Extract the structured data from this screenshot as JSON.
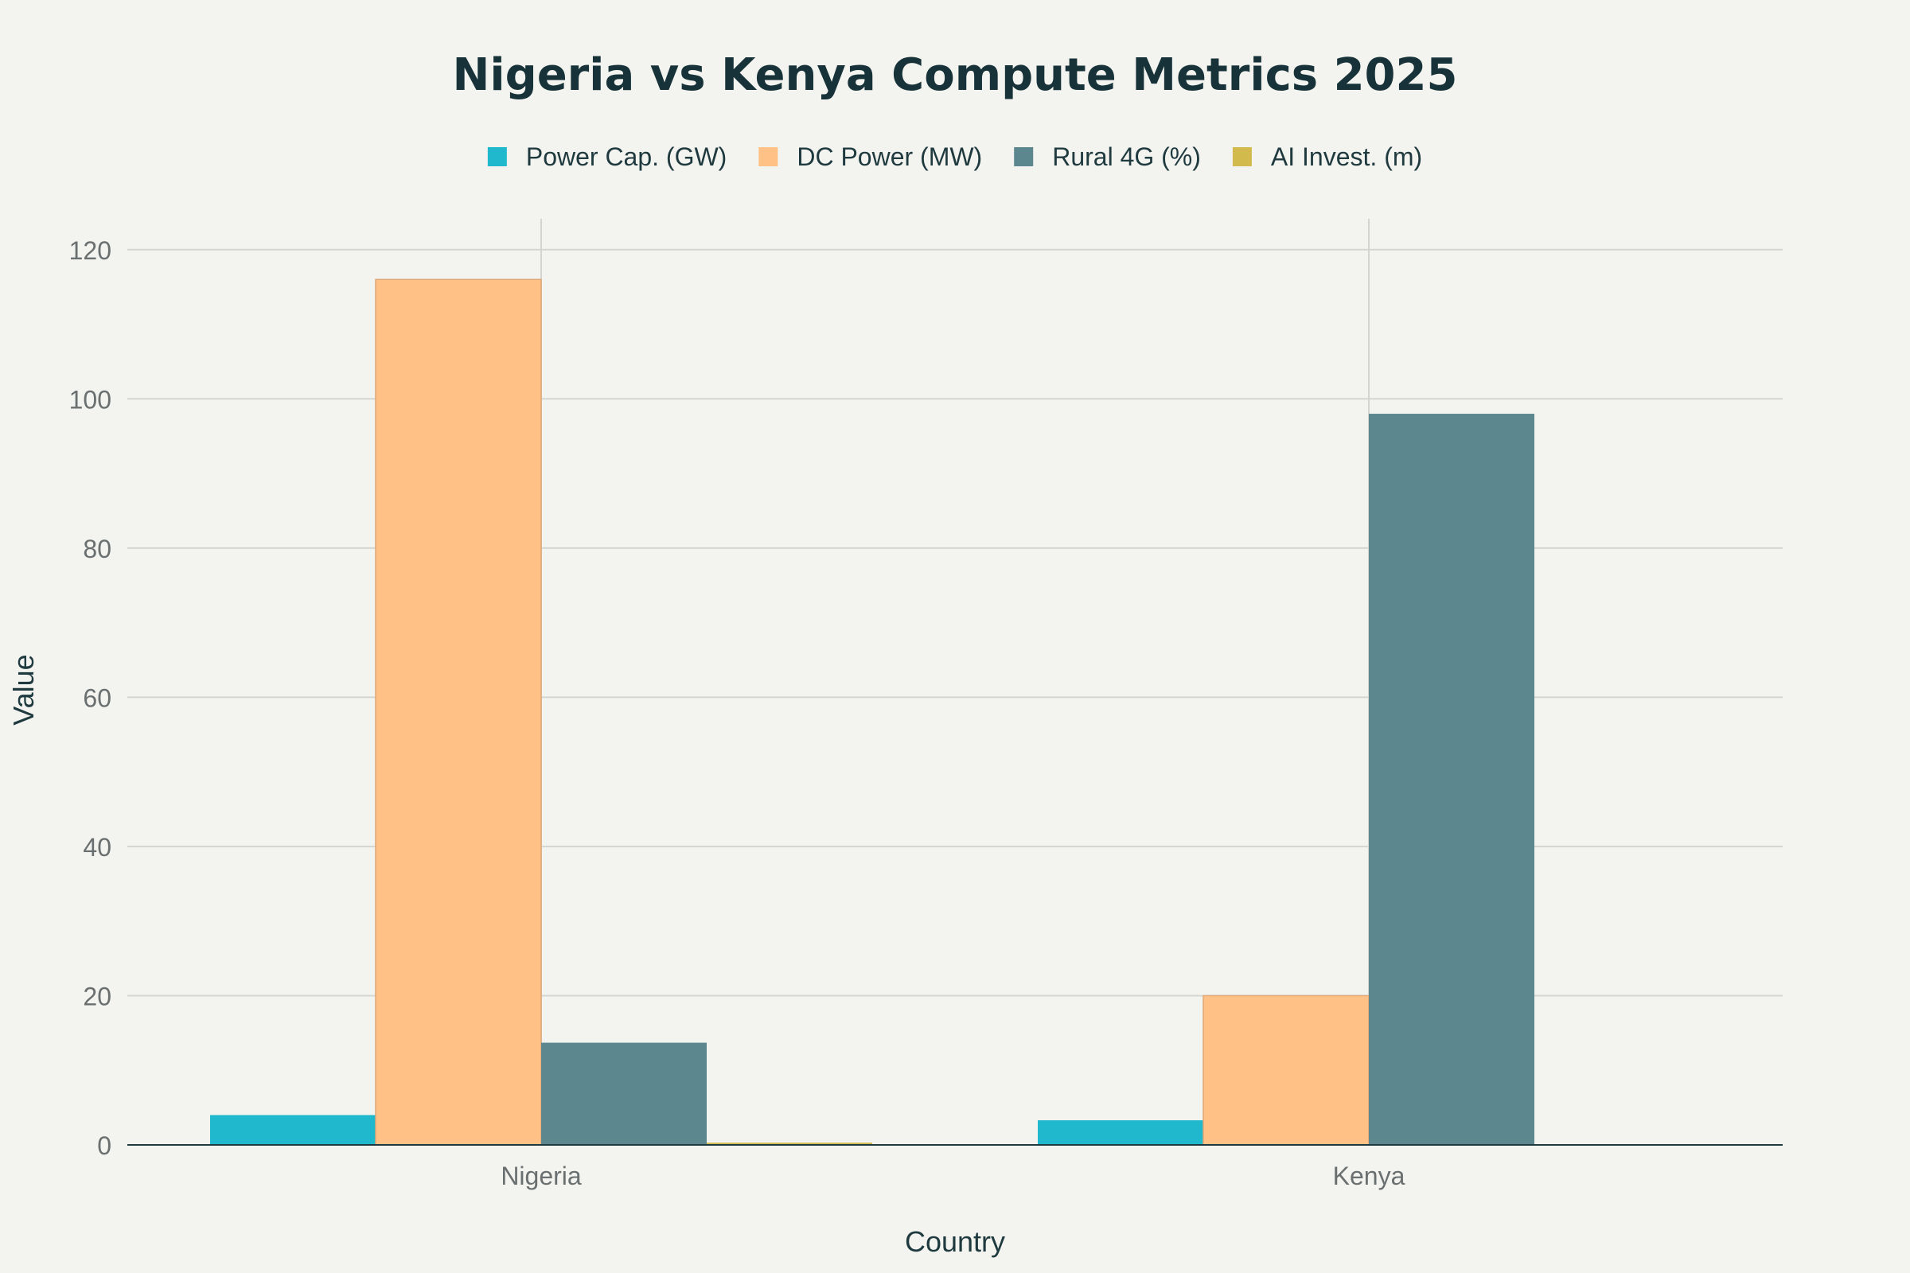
{
  "chart_data": {
    "type": "bar",
    "title": "Nigeria vs Kenya Compute Metrics 2025",
    "xlabel": "Country",
    "ylabel": "Value",
    "categories": [
      "Nigeria",
      "Kenya"
    ],
    "series": [
      {
        "name": "Power Cap. (GW)",
        "color": "#1fb8cd",
        "values": [
          4.0,
          3.3
        ]
      },
      {
        "name": "DC Power (MW)",
        "color": "#ffc185",
        "values": [
          116,
          20
        ]
      },
      {
        "name": "Rural 4G (%)",
        "color": "#5d878f",
        "values": [
          13.7,
          98
        ]
      },
      {
        "name": "AI Invest. (m)",
        "color": "#d2ba4c",
        "values": [
          0.3,
          0
        ]
      }
    ],
    "ylim": [
      0,
      122
    ],
    "yticks": [
      0,
      20,
      40,
      60,
      80,
      100,
      120
    ],
    "grid": true,
    "legend_position": "top"
  }
}
